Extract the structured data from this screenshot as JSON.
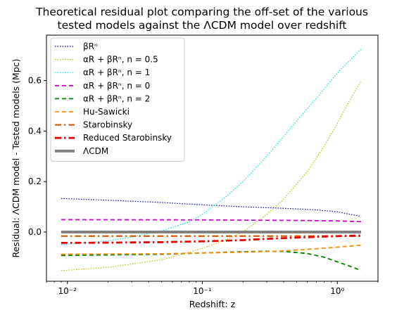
{
  "title_line1": "Theoretical residual plot comparing the off-set of the various",
  "title_line2": "tested models against the ΛCDM model over redshift",
  "chart_data": {
    "type": "line",
    "xscale": "log",
    "xlabel": "Redshift: z",
    "ylabel": "Residual: ΛCDM model - Tested models (Mpc)",
    "xlim": [
      0.007,
      2.0
    ],
    "ylim": [
      -0.195,
      0.78
    ],
    "yticks": [
      0.0,
      0.2,
      0.4,
      0.6
    ],
    "ytick_labels": [
      "0.0",
      "0.2",
      "0.4",
      "0.6"
    ],
    "xticks": [
      0.01,
      0.1,
      1
    ],
    "xtick_labels": [
      "10⁻²",
      "10⁻¹",
      "10⁰"
    ],
    "legend_position": "upper-left",
    "series": [
      {
        "name": "βRⁿ",
        "color": "#0000cc",
        "style": "dotted",
        "width": 1.2,
        "x": [
          0.009,
          0.02,
          0.05,
          0.1,
          0.2,
          0.4,
          0.7,
          1.0,
          1.5
        ],
        "y": [
          0.133,
          0.126,
          0.117,
          0.108,
          0.1,
          0.094,
          0.088,
          0.08,
          0.062
        ]
      },
      {
        "name": "αR + βRⁿ, n = 0.5",
        "color": "#bfbf00",
        "style": "dotted",
        "width": 1.2,
        "x": [
          0.009,
          0.02,
          0.05,
          0.1,
          0.15,
          0.2,
          0.3,
          0.4,
          0.6,
          0.8,
          1.0,
          1.2,
          1.5
        ],
        "y": [
          -0.153,
          -0.14,
          -0.11,
          -0.065,
          -0.03,
          0.0,
          0.07,
          0.13,
          0.24,
          0.34,
          0.43,
          0.51,
          0.598
        ]
      },
      {
        "name": "αR + βRⁿ, n = 1",
        "color": "#00e5e5",
        "style": "dotted",
        "width": 1.2,
        "x": [
          0.009,
          0.02,
          0.03,
          0.05,
          0.08,
          0.1,
          0.15,
          0.2,
          0.3,
          0.5,
          0.7,
          1.0,
          1.5
        ],
        "y": [
          -0.05,
          -0.035,
          -0.02,
          0.005,
          0.04,
          0.07,
          0.14,
          0.2,
          0.3,
          0.44,
          0.53,
          0.63,
          0.725
        ]
      },
      {
        "name": "αR + βRⁿ, n = 0",
        "color": "#cc00cc",
        "style": "dashed",
        "width": 1.8,
        "x": [
          0.009,
          0.1,
          0.5,
          1.0,
          1.5
        ],
        "y": [
          0.049,
          0.048,
          0.046,
          0.044,
          0.041
        ]
      },
      {
        "name": "αR + βRⁿ, n = 2",
        "color": "#008000",
        "style": "dashed",
        "width": 1.8,
        "x": [
          0.009,
          0.05,
          0.1,
          0.2,
          0.3,
          0.4,
          0.6,
          0.8,
          1.0,
          1.2,
          1.5
        ],
        "y": [
          -0.093,
          -0.088,
          -0.083,
          -0.078,
          -0.076,
          -0.077,
          -0.085,
          -0.1,
          -0.118,
          -0.133,
          -0.152
        ]
      },
      {
        "name": "Hu-Sawicki",
        "color": "#ff8c00",
        "style": "dashed",
        "width": 1.8,
        "x": [
          0.009,
          0.05,
          0.1,
          0.2,
          0.4,
          0.7,
          1.0,
          1.5
        ],
        "y": [
          -0.088,
          -0.086,
          -0.083,
          -0.08,
          -0.075,
          -0.066,
          -0.06,
          -0.052
        ]
      },
      {
        "name": "Starobinsky",
        "color": "#d2691e",
        "style": "dashdot",
        "width": 2.4,
        "x": [
          0.009,
          0.1,
          0.5,
          1.0,
          1.5
        ],
        "y": [
          -0.016,
          -0.016,
          -0.016,
          -0.016,
          -0.016
        ]
      },
      {
        "name": "Reduced Starobinsky",
        "color": "#ee0000",
        "style": "dashdot",
        "width": 2.8,
        "x": [
          0.009,
          0.02,
          0.05,
          0.1,
          0.2,
          0.3,
          0.5,
          0.8,
          1.0,
          1.5
        ],
        "y": [
          -0.043,
          -0.042,
          -0.04,
          -0.037,
          -0.032,
          -0.027,
          -0.022,
          -0.018,
          -0.016,
          -0.014
        ]
      },
      {
        "name": "ΛCDM",
        "color": "#808080",
        "style": "solid",
        "width": 4,
        "x": [
          0.009,
          1.5
        ],
        "y": [
          0.0,
          0.0
        ]
      }
    ]
  }
}
